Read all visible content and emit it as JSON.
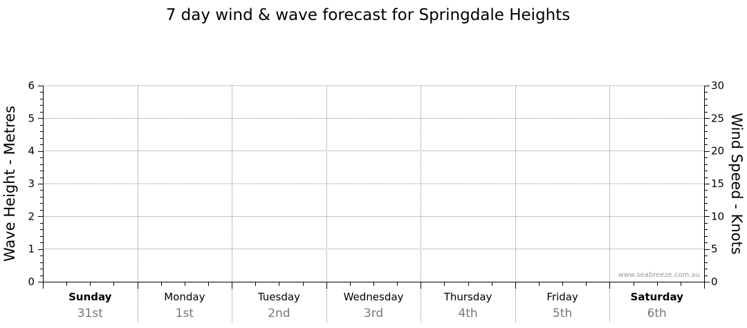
{
  "chart_data": {
    "type": "line",
    "title": "7 day wind & wave forecast for Springdale Heights",
    "ylabel_left": "Wave Height - Metres",
    "ylabel_right": "Wind Speed - Knots",
    "ylim_left": [
      0,
      6
    ],
    "yticks_left": [
      "0",
      "1",
      "2",
      "3",
      "4",
      "5",
      "6"
    ],
    "ylim_right": [
      0,
      30
    ],
    "yticks_right": [
      "0",
      "5",
      "10",
      "15",
      "20",
      "25",
      "30"
    ],
    "grid": true,
    "days": [
      {
        "name": "Sunday",
        "date": "31st",
        "bold": true
      },
      {
        "name": "Monday",
        "date": "1st",
        "bold": false
      },
      {
        "name": "Tuesday",
        "date": "2nd",
        "bold": false
      },
      {
        "name": "Wednesday",
        "date": "3rd",
        "bold": false
      },
      {
        "name": "Thursday",
        "date": "4th",
        "bold": false
      },
      {
        "name": "Friday",
        "date": "5th",
        "bold": false
      },
      {
        "name": "Saturday",
        "date": "6th",
        "bold": true
      }
    ],
    "series": []
  },
  "watermark": "www.seabreeze.com.au",
  "colors": {
    "axis": "#000000",
    "grid": "#888888",
    "date_text": "#777777",
    "watermark": "#999999"
  }
}
